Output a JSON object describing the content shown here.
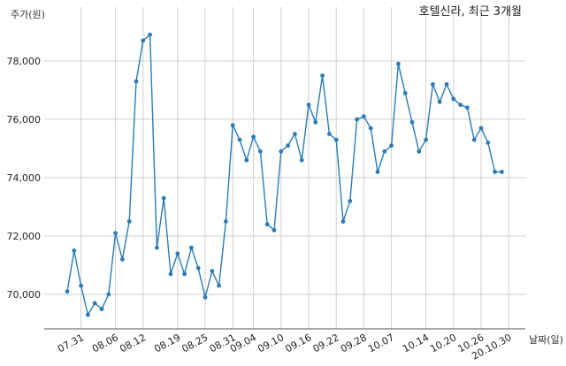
{
  "chart_data": {
    "type": "line",
    "title": "호텔신라, 최근 3개월",
    "ylabel": "주가(원)",
    "xlabel": "날짜(일)",
    "ylim": [
      68800,
      79200
    ],
    "yticks": [
      70000,
      72000,
      74000,
      76000,
      78000
    ],
    "ytick_labels": [
      "70,000",
      "72,000",
      "74,000",
      "76,000",
      "78,000"
    ],
    "grid": true,
    "line_color": "#2c7bb6",
    "xtick_labels": [
      "07.31",
      "08.06",
      "08.12",
      "08.19",
      "08.25",
      "08.31",
      "09.04",
      "09.10",
      "09.16",
      "09.22",
      "09.28",
      "10.07",
      "10.14",
      "10.20",
      "10.26",
      "20.10.30"
    ],
    "xtick_positions": [
      2,
      7,
      11,
      16,
      20,
      24,
      27,
      31,
      35,
      39,
      43,
      47,
      52,
      56,
      60,
      64
    ],
    "x": [
      0,
      1,
      2,
      3,
      4,
      5,
      6,
      7,
      8,
      9,
      10,
      11,
      12,
      13,
      14,
      15,
      16,
      17,
      18,
      19,
      20,
      21,
      22,
      23,
      24,
      25,
      26,
      27,
      28,
      29,
      30,
      31,
      32,
      33,
      34,
      35,
      36,
      37,
      38,
      39,
      40,
      41,
      42,
      43,
      44,
      45,
      46,
      47,
      48,
      49,
      50,
      51,
      52,
      53,
      54,
      55,
      56,
      57,
      58,
      59,
      60,
      61,
      62,
      63
    ],
    "values": [
      70100,
      71500,
      70300,
      69300,
      69700,
      69500,
      70000,
      72100,
      71200,
      72500,
      77300,
      78700,
      78900,
      71600,
      73300,
      70700,
      71400,
      70700,
      71600,
      70900,
      69900,
      70800,
      70300,
      72500,
      75800,
      75300,
      74600,
      75400,
      74900,
      72400,
      72200,
      74900,
      75100,
      75500,
      74600,
      76500,
      75900,
      77500,
      75500,
      75300,
      72500,
      73200,
      76000,
      76100,
      75700,
      74200,
      74900,
      75100,
      77900,
      76900,
      75900,
      74900,
      75300,
      77200,
      76600,
      77200,
      76700,
      76500,
      76400,
      75300,
      75700,
      75200,
      74200,
      74200
    ]
  }
}
